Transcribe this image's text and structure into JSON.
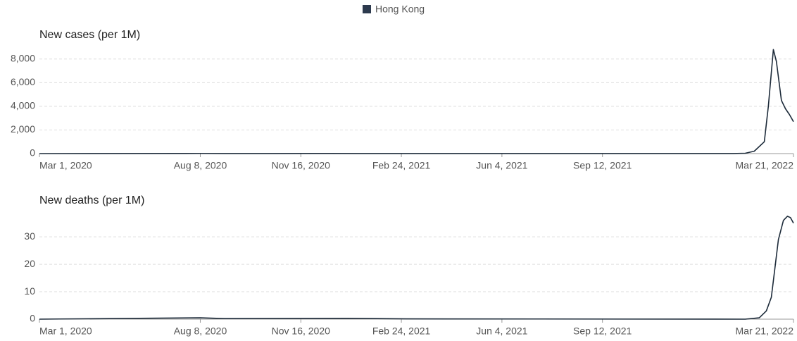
{
  "legend": {
    "label": "Hong Kong",
    "color": "#2d3a4e"
  },
  "chart_data": [
    {
      "type": "line",
      "title": "New cases (per 1M)",
      "x": [
        "2020-03-01",
        "2020-07-25",
        "2020-08-08",
        "2020-09-01",
        "2020-12-01",
        "2020-12-15",
        "2021-01-15",
        "2021-03-01",
        "2022-01-20",
        "2022-02-01",
        "2022-02-10",
        "2022-02-20",
        "2022-02-24",
        "2022-03-01",
        "2022-03-04",
        "2022-03-09",
        "2022-03-13",
        "2022-03-17",
        "2022-03-21"
      ],
      "series": [
        {
          "color": "#1d2b3a",
          "values": [
            0,
            10,
            15,
            2,
            10,
            12,
            5,
            2,
            5,
            30,
            200,
            1000,
            4000,
            8800,
            7800,
            4500,
            3800,
            3300,
            2700
          ]
        }
      ],
      "xlim": [
        "2020-03-01",
        "2022-03-21"
      ],
      "xticks": [
        {
          "value": "2020-03-01",
          "label": "Mar 1, 2020"
        },
        {
          "value": "2020-08-08",
          "label": "Aug 8, 2020"
        },
        {
          "value": "2020-11-16",
          "label": "Nov 16, 2020"
        },
        {
          "value": "2021-02-24",
          "label": "Feb 24, 2021"
        },
        {
          "value": "2021-06-04",
          "label": "Jun 4, 2021"
        },
        {
          "value": "2021-09-12",
          "label": "Sep 12, 2021"
        },
        {
          "value": "2022-03-21",
          "label": "Mar 21, 2022"
        }
      ],
      "ylim": [
        0,
        9000
      ],
      "yticks": [
        0,
        {
          "value": 2000,
          "label": "2,000"
        },
        {
          "value": 4000,
          "label": "4,000"
        },
        {
          "value": 6000,
          "label": "6,000"
        },
        {
          "value": 8000,
          "label": "8,000"
        }
      ],
      "grid": true
    },
    {
      "type": "line",
      "title": "New deaths (per 1M)",
      "x": [
        "2020-03-01",
        "2020-08-08",
        "2020-09-01",
        "2021-01-01",
        "2021-03-01",
        "2022-02-01",
        "2022-02-15",
        "2022-02-22",
        "2022-02-27",
        "2022-03-03",
        "2022-03-06",
        "2022-03-11",
        "2022-03-15",
        "2022-03-18",
        "2022-03-21"
      ],
      "series": [
        {
          "color": "#1d2b3a",
          "values": [
            0,
            0.5,
            0.2,
            0.3,
            0.1,
            0,
            0.5,
            3,
            8,
            20,
            29,
            36,
            37.5,
            37,
            35
          ]
        }
      ],
      "xlim": [
        "2020-03-01",
        "2022-03-21"
      ],
      "xticks": [
        {
          "value": "2020-03-01",
          "label": "Mar 1, 2020"
        },
        {
          "value": "2020-08-08",
          "label": "Aug 8, 2020"
        },
        {
          "value": "2020-11-16",
          "label": "Nov 16, 2020"
        },
        {
          "value": "2021-02-24",
          "label": "Feb 24, 2021"
        },
        {
          "value": "2021-06-04",
          "label": "Jun 4, 2021"
        },
        {
          "value": "2021-09-12",
          "label": "Sep 12, 2021"
        },
        {
          "value": "2022-03-21",
          "label": "Mar 21, 2022"
        }
      ],
      "ylim": [
        0,
        38
      ],
      "yticks": [
        0,
        10,
        20,
        30
      ],
      "grid": true
    }
  ]
}
